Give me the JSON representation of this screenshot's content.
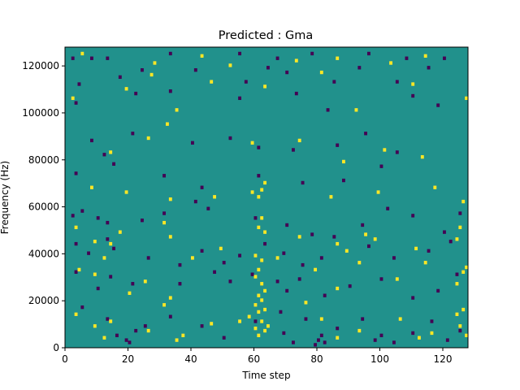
{
  "chart_data": {
    "type": "heatmap",
    "title": "Predicted : Gma",
    "xlabel": "Time step",
    "ylabel": "Frequency (Hz)",
    "xlim": [
      0,
      128
    ],
    "ylim": [
      0,
      128000
    ],
    "xticks": [
      0,
      20,
      40,
      60,
      80,
      100,
      120
    ],
    "yticks": [
      0,
      20000,
      40000,
      60000,
      80000,
      100000,
      120000
    ],
    "grid": false,
    "legend": "none",
    "colormap": "viridis",
    "value_levels": {
      "low": "#440154",
      "mid": "#21918c",
      "high": "#fde725"
    },
    "background_level": "mid",
    "low_cells": [
      [
        2,
        123000
      ],
      [
        8,
        123000
      ],
      [
        13,
        123000
      ],
      [
        33,
        125000
      ],
      [
        55,
        125000
      ],
      [
        67,
        123000
      ],
      [
        78,
        125000
      ],
      [
        96,
        125000
      ],
      [
        108,
        123000
      ],
      [
        120,
        123000
      ],
      [
        4,
        112000
      ],
      [
        17,
        115000
      ],
      [
        24,
        118000
      ],
      [
        41,
        118000
      ],
      [
        57,
        113000
      ],
      [
        64,
        119000
      ],
      [
        70,
        117000
      ],
      [
        85,
        113000
      ],
      [
        93,
        119000
      ],
      [
        105,
        113000
      ],
      [
        115,
        119000
      ],
      [
        3,
        104000
      ],
      [
        22,
        108000
      ],
      [
        33,
        109000
      ],
      [
        55,
        106000
      ],
      [
        73,
        108000
      ],
      [
        83,
        101000
      ],
      [
        110,
        107000
      ],
      [
        118,
        103000
      ],
      [
        8,
        88000
      ],
      [
        12,
        82000
      ],
      [
        21,
        91000
      ],
      [
        40,
        87000
      ],
      [
        52,
        89000
      ],
      [
        61,
        85000
      ],
      [
        72,
        84000
      ],
      [
        86,
        86000
      ],
      [
        95,
        91000
      ],
      [
        105,
        83000
      ],
      [
        3,
        74000
      ],
      [
        15,
        78000
      ],
      [
        31,
        73000
      ],
      [
        43,
        68000
      ],
      [
        61,
        73000
      ],
      [
        75,
        70000
      ],
      [
        88,
        71000
      ],
      [
        100,
        77000
      ],
      [
        2,
        56000
      ],
      [
        5,
        58000
      ],
      [
        10,
        55000
      ],
      [
        13,
        53000
      ],
      [
        24,
        54000
      ],
      [
        31,
        57000
      ],
      [
        41,
        62000
      ],
      [
        45,
        59000
      ],
      [
        60,
        55000
      ],
      [
        70,
        52000
      ],
      [
        78,
        48000
      ],
      [
        85,
        47000
      ],
      [
        94,
        52000
      ],
      [
        102,
        59000
      ],
      [
        110,
        56000
      ],
      [
        120,
        49000
      ],
      [
        125,
        57000
      ],
      [
        3,
        44000
      ],
      [
        7,
        40000
      ],
      [
        13,
        46000
      ],
      [
        15,
        42000
      ],
      [
        26,
        38000
      ],
      [
        36,
        35000
      ],
      [
        43,
        41000
      ],
      [
        50,
        36000
      ],
      [
        55,
        39000
      ],
      [
        63,
        44000
      ],
      [
        69,
        40000
      ],
      [
        75,
        35000
      ],
      [
        81,
        38000
      ],
      [
        96,
        43000
      ],
      [
        104,
        38000
      ],
      [
        115,
        41000
      ],
      [
        122,
        45000
      ],
      [
        3,
        32000
      ],
      [
        10,
        25000
      ],
      [
        14,
        30000
      ],
      [
        21,
        27000
      ],
      [
        36,
        27000
      ],
      [
        47,
        32000
      ],
      [
        52,
        28000
      ],
      [
        59,
        31000
      ],
      [
        67,
        28000
      ],
      [
        70,
        24000
      ],
      [
        74,
        29000
      ],
      [
        82,
        22000
      ],
      [
        90,
        26000
      ],
      [
        100,
        29000
      ],
      [
        110,
        21000
      ],
      [
        118,
        24000
      ],
      [
        124,
        31000
      ],
      [
        5,
        17000
      ],
      [
        13,
        12000
      ],
      [
        16,
        5000
      ],
      [
        19,
        3000
      ],
      [
        20,
        2000
      ],
      [
        22,
        7000
      ],
      [
        25,
        9000
      ],
      [
        33,
        13000
      ],
      [
        43,
        9000
      ],
      [
        50,
        4000
      ],
      [
        60,
        11000
      ],
      [
        68,
        15000
      ],
      [
        69,
        6000
      ],
      [
        72,
        2000
      ],
      [
        76,
        12000
      ],
      [
        79,
        1000
      ],
      [
        80,
        3000
      ],
      [
        81,
        5000
      ],
      [
        82,
        2000
      ],
      [
        86,
        8000
      ],
      [
        94,
        12000
      ],
      [
        98,
        3000
      ],
      [
        100,
        5000
      ],
      [
        104,
        2000
      ],
      [
        110,
        6000
      ],
      [
        116,
        11000
      ],
      [
        121,
        3000
      ],
      [
        125,
        7000
      ]
    ],
    "high_cells": [
      [
        5,
        125000
      ],
      [
        28,
        121000
      ],
      [
        43,
        124000
      ],
      [
        52,
        120000
      ],
      [
        73,
        122000
      ],
      [
        86,
        123000
      ],
      [
        103,
        121000
      ],
      [
        114,
        124000
      ],
      [
        2,
        106000
      ],
      [
        19,
        110000
      ],
      [
        27,
        116000
      ],
      [
        35,
        101000
      ],
      [
        46,
        113000
      ],
      [
        63,
        111000
      ],
      [
        81,
        117000
      ],
      [
        92,
        101000
      ],
      [
        110,
        112000
      ],
      [
        127,
        106000
      ],
      [
        14,
        83000
      ],
      [
        26,
        89000
      ],
      [
        32,
        95000
      ],
      [
        59,
        87000
      ],
      [
        74,
        88000
      ],
      [
        88,
        79000
      ],
      [
        101,
        84000
      ],
      [
        113,
        81000
      ],
      [
        8,
        68000
      ],
      [
        19,
        66000
      ],
      [
        33,
        63000
      ],
      [
        47,
        64000
      ],
      [
        59,
        66000
      ],
      [
        61,
        64000
      ],
      [
        62,
        67000
      ],
      [
        63,
        70000
      ],
      [
        84,
        64000
      ],
      [
        99,
        66000
      ],
      [
        117,
        68000
      ],
      [
        126,
        62000
      ],
      [
        3,
        51000
      ],
      [
        9,
        45000
      ],
      [
        14,
        44000
      ],
      [
        17,
        49000
      ],
      [
        31,
        53000
      ],
      [
        33,
        47000
      ],
      [
        49,
        42000
      ],
      [
        61,
        51000
      ],
      [
        62,
        55000
      ],
      [
        63,
        49000
      ],
      [
        67,
        38000
      ],
      [
        74,
        47000
      ],
      [
        86,
        44000
      ],
      [
        89,
        41000
      ],
      [
        95,
        48000
      ],
      [
        98,
        46000
      ],
      [
        111,
        42000
      ],
      [
        124,
        46000
      ],
      [
        125,
        51000
      ],
      [
        4,
        33000
      ],
      [
        9,
        31000
      ],
      [
        12,
        38000
      ],
      [
        20,
        23000
      ],
      [
        25,
        28000
      ],
      [
        33,
        21000
      ],
      [
        40,
        38000
      ],
      [
        60,
        39000
      ],
      [
        60,
        30000
      ],
      [
        61,
        22000
      ],
      [
        61,
        33000
      ],
      [
        62,
        27000
      ],
      [
        62,
        37000
      ],
      [
        63,
        24000
      ],
      [
        79,
        33000
      ],
      [
        86,
        25000
      ],
      [
        93,
        36000
      ],
      [
        105,
        29000
      ],
      [
        114,
        36000
      ],
      [
        124,
        27000
      ],
      [
        126,
        32000
      ],
      [
        127,
        34000
      ],
      [
        3,
        14000
      ],
      [
        9,
        9000
      ],
      [
        12,
        4000
      ],
      [
        14,
        11000
      ],
      [
        26,
        7000
      ],
      [
        31,
        18000
      ],
      [
        35,
        3000
      ],
      [
        37,
        5000
      ],
      [
        46,
        10000
      ],
      [
        55,
        11000
      ],
      [
        58,
        13000
      ],
      [
        60,
        18000
      ],
      [
        60,
        8000
      ],
      [
        61,
        5000
      ],
      [
        61,
        15000
      ],
      [
        62,
        11000
      ],
      [
        62,
        20000
      ],
      [
        63,
        7000
      ],
      [
        63,
        16000
      ],
      [
        64,
        9000
      ],
      [
        76,
        19000
      ],
      [
        81,
        12000
      ],
      [
        86,
        4000
      ],
      [
        93,
        7000
      ],
      [
        106,
        12000
      ],
      [
        112,
        4000
      ],
      [
        116,
        6000
      ],
      [
        124,
        14000
      ],
      [
        125,
        9000
      ],
      [
        126,
        16000
      ],
      [
        127,
        5000
      ]
    ]
  }
}
